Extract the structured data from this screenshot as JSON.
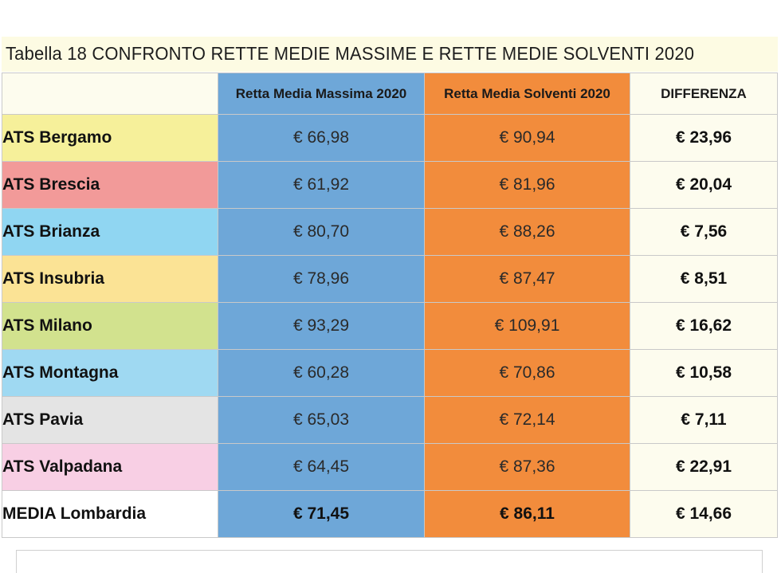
{
  "title": "Tabella 18 CONFRONTO RETTE MEDIE MASSIME E RETTE MEDIE SOLVENTI 2020",
  "colors": {
    "retta_massima": "#6ea7d8",
    "retta_solventi": "#f28c3c",
    "neutral": "#fdfcee"
  },
  "columns": {
    "name": "",
    "retta_massima": "Retta Media Massima 2020",
    "retta_solventi": "Retta Media Solventi 2020",
    "differenza": "DIFFERENZA"
  },
  "rows": [
    {
      "name": "ATS Bergamo",
      "color": "#f6f09a",
      "max": "€ 66,98",
      "solv": "€ 90,94",
      "diff": "€ 23,96"
    },
    {
      "name": "ATS Brescia",
      "color": "#f29a99",
      "max": "€ 61,92",
      "solv": "€ 81,96",
      "diff": "€ 20,04"
    },
    {
      "name": "ATS Brianza",
      "color": "#90d6f2",
      "max": "€ 80,70",
      "solv": "€ 88,26",
      "diff": "€ 7,56"
    },
    {
      "name": "ATS Insubria",
      "color": "#fbe395",
      "max": "€ 78,96",
      "solv": "€ 87,47",
      "diff": "€ 8,51"
    },
    {
      "name": "ATS Milano",
      "color": "#d2e28e",
      "max": "€ 93,29",
      "solv": "€ 109,91",
      "diff": "€ 16,62"
    },
    {
      "name": "ATS Montagna",
      "color": "#9fd9f2",
      "max": "€ 60,28",
      "solv": "€ 70,86",
      "diff": "€ 10,58"
    },
    {
      "name": "ATS Pavia",
      "color": "#e4e4e4",
      "max": "€ 65,03",
      "solv": "€ 72,14",
      "diff": "€ 7,11"
    },
    {
      "name": "ATS Valpadana",
      "color": "#f8cfe4",
      "max": "€ 64,45",
      "solv": "€ 87,36",
      "diff": "€ 22,91"
    }
  ],
  "total": {
    "name": "MEDIA Lombardia",
    "color": "#ffffff",
    "max": "€ 71,45",
    "solv": "€ 86,11",
    "diff": "€ 14,66"
  }
}
